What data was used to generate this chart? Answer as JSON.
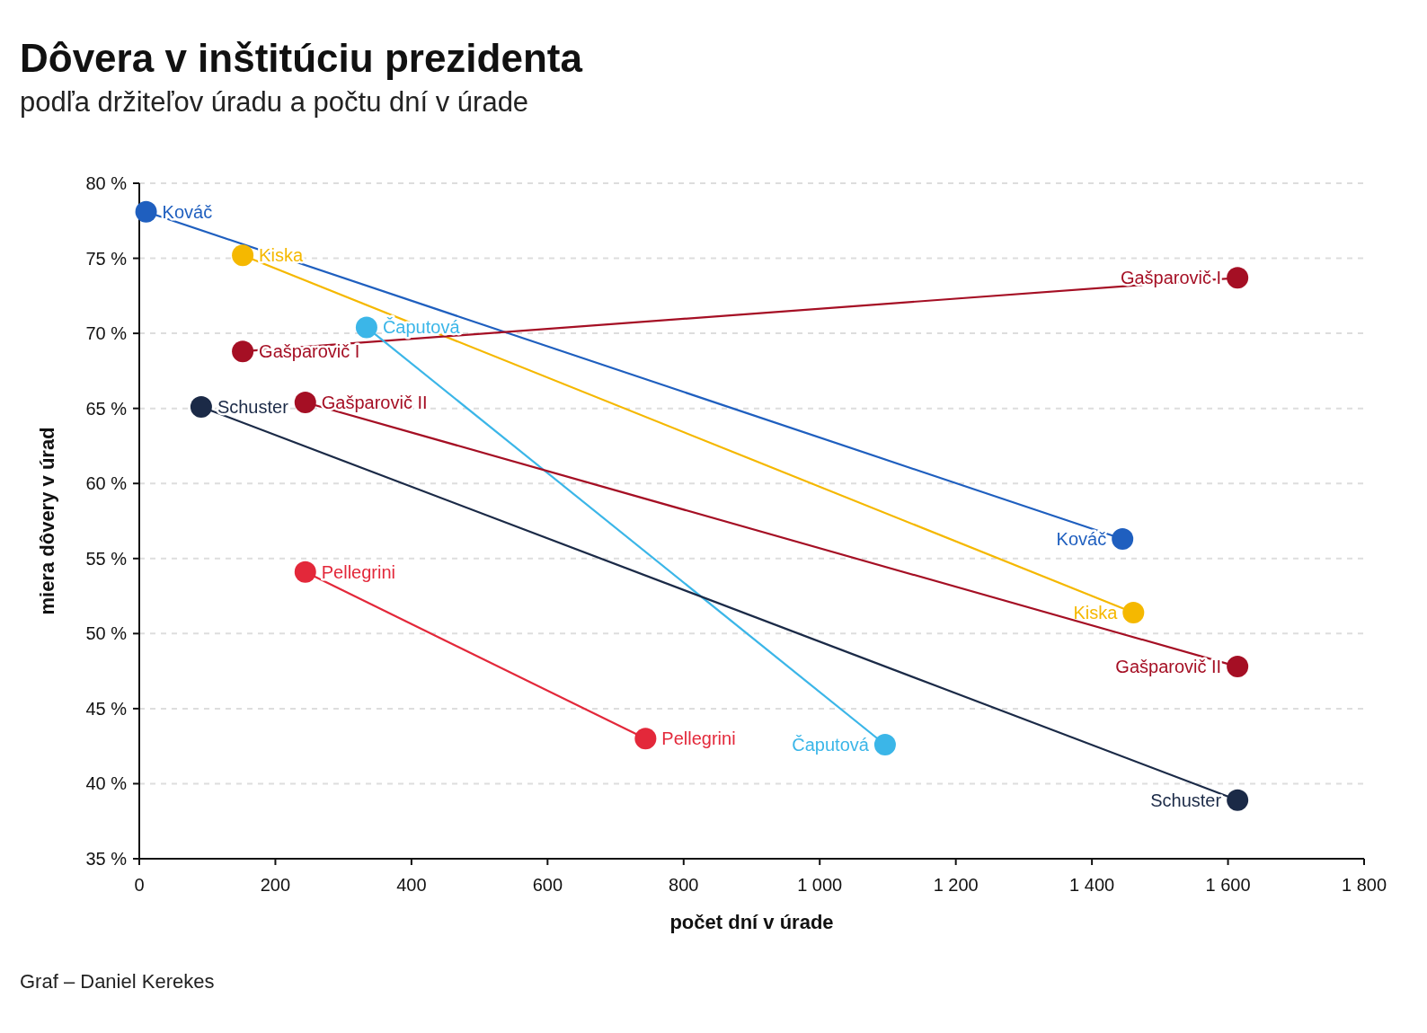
{
  "chart_data": {
    "type": "line",
    "title": "Dôvera v inštitúciu prezidenta",
    "subtitle": "podľa držiteľov úradu a počtu dní v úrade",
    "xlabel": "počet dní v úrade",
    "ylabel": "miera dôvery v úrad",
    "annotations": [
      "Graf – Daniel Kerekes"
    ],
    "xlim": [
      0,
      1800
    ],
    "xticks": [
      0,
      200,
      400,
      600,
      800,
      {
        "value": 1000,
        "label": "1 000"
      },
      {
        "value": 1200,
        "label": "1 200"
      },
      {
        "value": 1400,
        "label": "1 400"
      },
      {
        "value": 1600,
        "label": "1 600"
      },
      {
        "value": 1800,
        "label": "1 800"
      }
    ],
    "ylim": [
      35,
      80
    ],
    "yticks": [
      {
        "value": 35,
        "label": "35 %"
      },
      {
        "value": 40,
        "label": "40 %"
      },
      {
        "value": 45,
        "label": "45 %"
      },
      {
        "value": 50,
        "label": "50 %"
      },
      {
        "value": 55,
        "label": "55 %"
      },
      {
        "value": 60,
        "label": "60 %"
      },
      {
        "value": 65,
        "label": "65 %"
      },
      {
        "value": 70,
        "label": "70 %"
      },
      {
        "value": 75,
        "label": "75 %"
      },
      {
        "value": 80,
        "label": "80 %"
      }
    ],
    "grid": "y",
    "marker": "circle",
    "line_style": "solid",
    "series": [
      {
        "name": "Kováč",
        "color": "#1f5fbf",
        "x": [
          10,
          1445
        ],
        "values": [
          78.1,
          56.3
        ]
      },
      {
        "name": "Kiska",
        "color": "#f5b800",
        "x": [
          152,
          1461
        ],
        "values": [
          75.2,
          51.4
        ]
      },
      {
        "name": "Gašparovič I",
        "color": "#a50f24",
        "x": [
          152,
          1614
        ],
        "values": [
          68.8,
          73.7
        ]
      },
      {
        "name": "Čaputová",
        "color": "#3bb6e8",
        "x": [
          334,
          1096
        ],
        "values": [
          70.4,
          42.6
        ]
      },
      {
        "name": "Schuster",
        "color": "#1b2a47",
        "x": [
          91,
          1614
        ],
        "values": [
          65.1,
          38.9
        ]
      },
      {
        "name": "Gašparovič II",
        "color": "#a50f24",
        "x": [
          244,
          1614
        ],
        "values": [
          65.4,
          47.8
        ]
      },
      {
        "name": "Pellegrini",
        "color": "#e3283a",
        "x": [
          244,
          744
        ],
        "values": [
          54.1,
          43.0
        ]
      }
    ]
  }
}
